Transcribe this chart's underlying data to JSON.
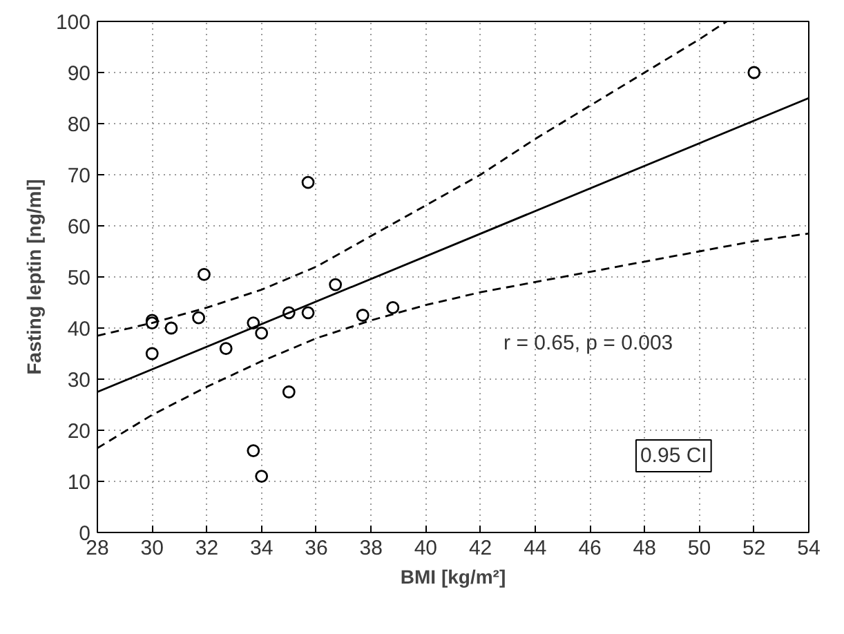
{
  "chart_data": {
    "type": "scatter",
    "xlabel": "BMI [kg/m²]",
    "ylabel": "Fasting leptin [ng/ml]",
    "xlim": [
      28,
      54
    ],
    "ylim": [
      0,
      100
    ],
    "xticks": [
      28,
      30,
      32,
      34,
      36,
      38,
      40,
      42,
      44,
      46,
      48,
      50,
      52,
      54
    ],
    "yticks": [
      0,
      10,
      20,
      30,
      40,
      50,
      60,
      70,
      80,
      90,
      100
    ],
    "grid": true,
    "series": [
      {
        "color": "#000000",
        "marker": "circle",
        "x": [
          30,
          30,
          30,
          30.7,
          31.7,
          31.9,
          32.7,
          33.7,
          33.7,
          34,
          34,
          35,
          35,
          35.7,
          35.7,
          36.7,
          37.7,
          38.8,
          52
        ],
        "values": [
          41.5,
          41,
          35,
          40,
          42,
          50.5,
          36,
          41,
          16,
          39,
          11,
          43,
          27.5,
          68.5,
          43,
          48.5,
          42.5,
          44,
          90
        ]
      },
      {
        "type": "line",
        "color": "#000000",
        "line_style": "solid",
        "x": [
          28,
          54
        ],
        "values": [
          27.5,
          85
        ]
      },
      {
        "type": "line",
        "color": "#000000",
        "line_style": "dashed",
        "x": [
          28,
          30,
          32,
          34,
          36,
          38,
          40,
          42,
          44,
          46,
          48,
          50,
          51
        ],
        "values": [
          38.5,
          41,
          44,
          47.5,
          52,
          58,
          64,
          70,
          77,
          83.5,
          90,
          96.5,
          100
        ]
      },
      {
        "type": "line",
        "color": "#000000",
        "line_style": "dashed",
        "x": [
          28,
          30,
          32,
          34,
          36,
          38,
          40,
          42,
          44,
          46,
          48,
          50,
          52,
          54
        ],
        "values": [
          16.5,
          23,
          28.5,
          33.5,
          38,
          41.5,
          44.5,
          47,
          49,
          51,
          53,
          55,
          57,
          58.5
        ]
      }
    ],
    "annotations": [
      "r = 0.65, p = 0.003",
      "0.95 CI"
    ]
  }
}
